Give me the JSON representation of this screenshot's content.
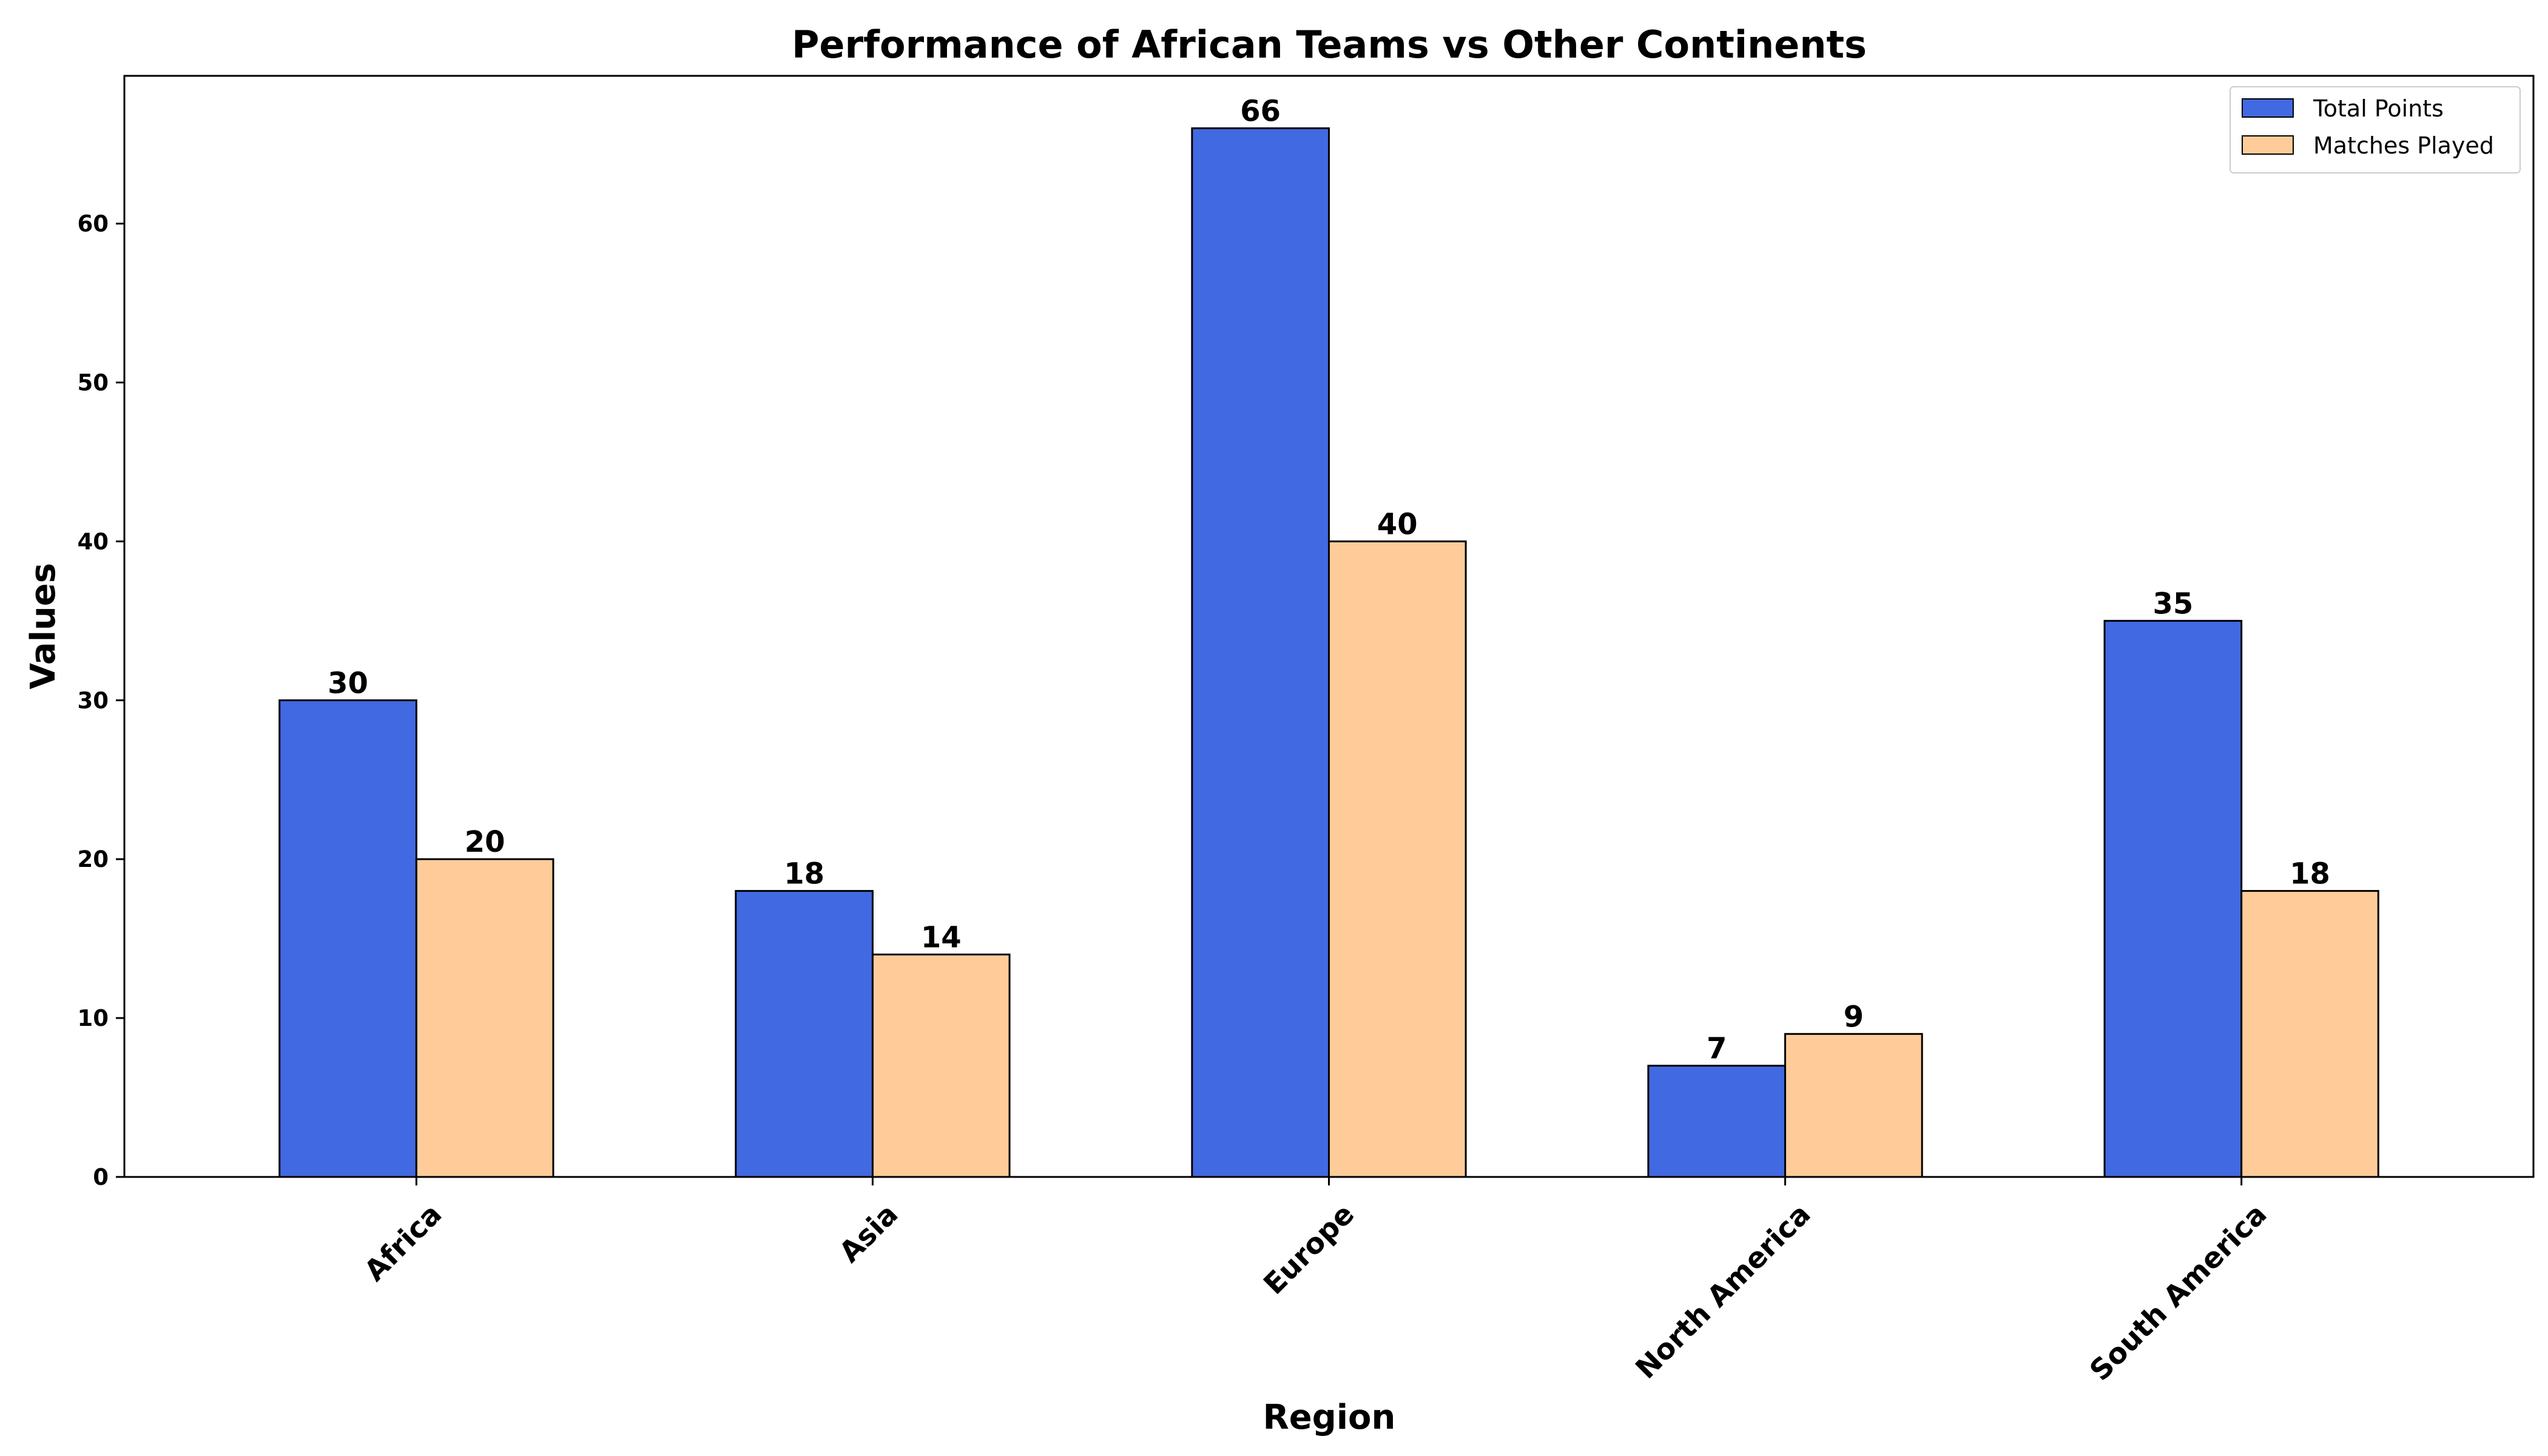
{
  "chart_data": {
    "type": "bar",
    "title": "Performance of African Teams vs Other Continents",
    "xlabel": "Region",
    "ylabel": "Values",
    "categories": [
      "Africa",
      "Asia",
      "Europe",
      "North America",
      "South America"
    ],
    "series": [
      {
        "name": "Total Points",
        "values": [
          30,
          18,
          66,
          7,
          35
        ],
        "color": "#4169E1"
      },
      {
        "name": "Matches Played",
        "values": [
          20,
          14,
          40,
          9,
          18
        ],
        "color": "#FFCC99"
      }
    ],
    "ylim": [
      0,
      69.3
    ],
    "yticks": [
      0,
      10,
      20,
      30,
      40,
      50,
      60
    ],
    "grid": false,
    "legend_position": "top-right",
    "x_tick_rotation": 45
  }
}
